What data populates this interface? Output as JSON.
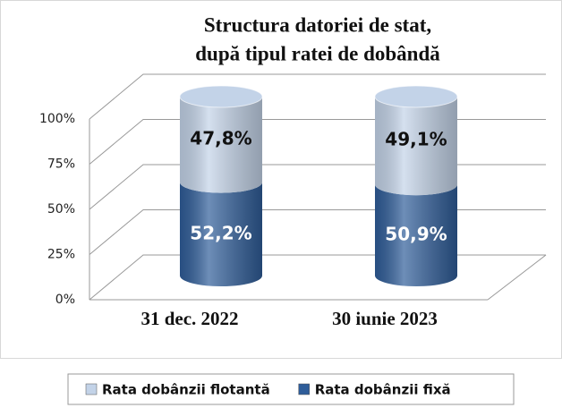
{
  "chart_data": {
    "type": "cylinder_stacked",
    "title": [
      "Structura datoriei de stat,",
      "după tipul ratei de dobândă"
    ],
    "categories": [
      "31 dec. 2022",
      "30 iunie 2023"
    ],
    "series": [
      {
        "name": "Rata dobânzii fixă",
        "color": "#2f5d99",
        "values": [
          52.2,
          50.9
        ],
        "value_labels": [
          "52,2%",
          "50,9%"
        ]
      },
      {
        "name": "Rata dobânzii flotantă",
        "color": "#c3d3e8",
        "values": [
          47.8,
          49.1
        ],
        "value_labels": [
          "47,8%",
          "49,1%"
        ]
      }
    ],
    "ylim": [
      0,
      100
    ],
    "yticks": [
      {
        "value": 0,
        "label": "0%"
      },
      {
        "value": 25,
        "label": "25%"
      },
      {
        "value": 50,
        "label": "50%"
      },
      {
        "value": 75,
        "label": "75%"
      },
      {
        "value": 100,
        "label": "100%"
      }
    ],
    "grid": true
  }
}
